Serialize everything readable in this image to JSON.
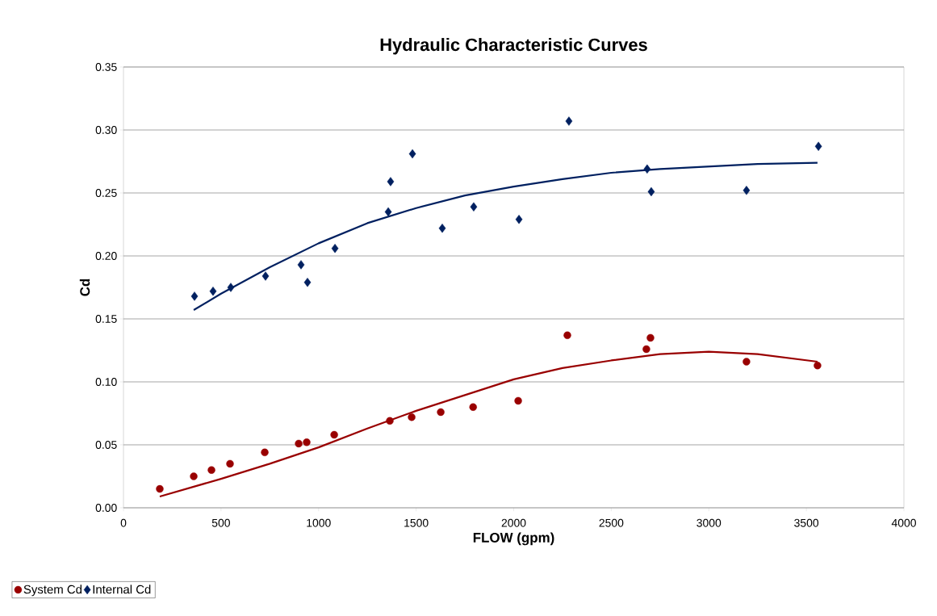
{
  "chart_data": {
    "type": "scatter",
    "title": "Hydraulic Characteristic Curves",
    "xlabel": "FLOW (gpm)",
    "ylabel": "Cd",
    "xlim": [
      0,
      4000
    ],
    "xticks": [
      0,
      500,
      1000,
      1500,
      2000,
      2500,
      3000,
      3500,
      4000
    ],
    "ylim": [
      0,
      0.35
    ],
    "yticks": [
      {
        "value": 0,
        "label": "0.00"
      },
      {
        "value": 0.05,
        "label": "0.05"
      },
      {
        "value": 0.1,
        "label": "0.10"
      },
      {
        "value": 0.15,
        "label": "0.15"
      },
      {
        "value": 0.2,
        "label": "0.20"
      },
      {
        "value": 0.25,
        "label": "0.25"
      },
      {
        "value": 0.3,
        "label": "0.30"
      },
      {
        "value": 0.35,
        "label": "0.35"
      }
    ],
    "grid": "y",
    "legend": "bottom left",
    "series": [
      {
        "name": "System Cd",
        "color": "#990000",
        "marker": "circle",
        "x": [
          186,
          360,
          451,
          546,
          724,
          898,
          939,
          1080,
          1353,
          1365,
          1477,
          1626,
          1792,
          2023,
          2275,
          2680,
          2701,
          3193,
          3557
        ],
        "values": [
          0.015,
          0.025,
          0.03,
          0.035,
          0.044,
          0.051,
          0.052,
          0.058,
          null,
          0.069,
          0.072,
          0.076,
          0.08,
          0.085,
          0.137,
          0.126,
          0.135,
          0.116,
          0.113
        ]
      },
      {
        "name": "Internal Cd",
        "color": "#002060",
        "marker": "diamond",
        "x": [
          364,
          459,
          550,
          728,
          910,
          943,
          1084,
          1357,
          1369,
          1481,
          1634,
          1795,
          2027,
          2283,
          2684,
          2705,
          3193,
          3562
        ],
        "values": [
          0.168,
          0.172,
          0.175,
          0.184,
          0.193,
          0.179,
          0.206,
          0.235,
          0.259,
          0.281,
          0.222,
          0.239,
          0.229,
          0.307,
          0.269,
          0.251,
          0.252,
          0.287
        ]
      },
      {
        "type": "line",
        "color": "#990000",
        "marker": "none",
        "x": [
          186,
          500,
          750,
          1000,
          1250,
          1500,
          2000,
          2250,
          2500,
          2750,
          3000,
          3250,
          3557
        ],
        "values": [
          0.009,
          0.023,
          0.035,
          0.048,
          0.063,
          0.077,
          0.102,
          0.111,
          0.117,
          0.122,
          0.124,
          0.122,
          0.116
        ]
      },
      {
        "type": "line",
        "color": "#002060",
        "marker": "none",
        "x": [
          360,
          500,
          750,
          1000,
          1250,
          1500,
          1750,
          2000,
          2250,
          2500,
          2750,
          3000,
          3250,
          3557
        ],
        "values": [
          0.157,
          0.17,
          0.191,
          0.21,
          0.226,
          0.238,
          0.248,
          0.255,
          0.261,
          0.266,
          0.269,
          0.271,
          0.273,
          0.274
        ]
      }
    ]
  }
}
